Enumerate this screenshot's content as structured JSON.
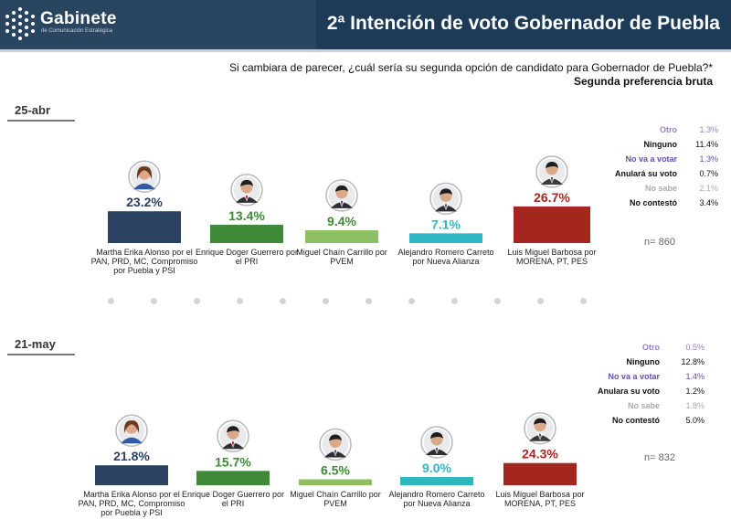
{
  "header": {
    "brand": "Gabinete",
    "brand_sub": "de Comunicación Estratégica",
    "title": "2ª Intención de voto Gobernador de Puebla"
  },
  "question": "Si cambiara de parecer, ¿cuál sería su segunda opción de candidato para Gobernador de Puebla?*",
  "subtitle": "Segunda preferencia bruta",
  "colors": {
    "alonso": "#2b4162",
    "doger": "#3e8a36",
    "chain": "#8cc062",
    "romero": "#2fb6c3",
    "barbosa": "#a3261f",
    "otro": "#9b7fc0",
    "no_va": "#6450a8",
    "no_sabe": "#aaaaaa"
  },
  "chart_data": [
    {
      "type": "bar",
      "period": "25-abr",
      "categories": [
        "Martha Erika Alonso por el PAN, PRD, MC, Compromiso por Puebla y PSI",
        "Enrique Doger Guerrero por el PRI",
        "Miguel Chaín Carrillo por PVEM",
        "Alejandro Romero Carreto por Nueva Alianza",
        "Luis Miguel Barbosa por MORENA, PT, PES"
      ],
      "values": [
        23.2,
        13.4,
        9.4,
        7.1,
        26.7
      ],
      "value_labels": [
        "23.2%",
        "13.4%",
        "9.4%",
        "7.1%",
        "26.7%"
      ],
      "others": [
        {
          "label": "Otro",
          "value": "1.3%"
        },
        {
          "label": "Ninguno",
          "value": "11.4%"
        },
        {
          "label": "No va a votar",
          "value": "1.3%"
        },
        {
          "label": "Anulará su voto",
          "value": "0.7%"
        },
        {
          "label": "No sabe",
          "value": "2.1%"
        },
        {
          "label": "No contestó",
          "value": "3.4%"
        }
      ],
      "n": "n= 860"
    },
    {
      "type": "bar",
      "period": "21-may",
      "categories": [
        "Martha Erika Alonso por el PAN, PRD, MC, Compromiso por Puebla y PSI",
        "Enrique Doger Guerrero por el PRI",
        "Miguel Chaín Carrillo por PVEM",
        "Alejandro Romero Carreto por Nueva Alianza",
        "Luis Miguel Barbosa por MORENA, PT, PES"
      ],
      "values": [
        21.8,
        15.7,
        6.5,
        9.0,
        24.3
      ],
      "value_labels": [
        "21.8%",
        "15.7%",
        "6.5%",
        "9.0%",
        "24.3%"
      ],
      "others": [
        {
          "label": "Otro",
          "value": "0.5%"
        },
        {
          "label": "Ninguno",
          "value": "12.8%"
        },
        {
          "label": "No va a votar",
          "value": "1.4%"
        },
        {
          "label": "Anulara su voto",
          "value": "1.2%"
        },
        {
          "label": "No sabe",
          "value": "1.8%"
        },
        {
          "label": "No contestó",
          "value": "5.0%"
        }
      ],
      "n": "n= 832"
    }
  ]
}
